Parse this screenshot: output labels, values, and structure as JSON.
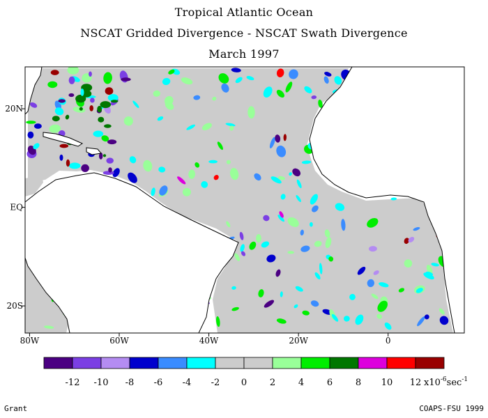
{
  "titles": {
    "line1": "Tropical Atlantic Ocean",
    "line2": "NSCAT Gridded Divergence - NSCAT Swath Divergence",
    "line3": "March 1997"
  },
  "axes": {
    "lon_labels": [
      "80W",
      "60W",
      "40W",
      "20W",
      "0"
    ],
    "lon_values": [
      -80,
      -60,
      -40,
      -20,
      0
    ],
    "lat_labels": [
      "20N",
      "EQ",
      "20S"
    ],
    "lat_values": [
      20,
      0,
      -20
    ]
  },
  "colorbar": {
    "colors": [
      "#4b0082",
      "#7b3fe4",
      "#b48cf2",
      "#0000cd",
      "#3a8cff",
      "#00ffff",
      "#cccccc",
      "#cccccc",
      "#99ff99",
      "#00ee00",
      "#007700",
      "#dd00dd",
      "#ff0000",
      "#990000"
    ],
    "tick_labels": [
      "-12",
      "-10",
      "-8",
      "-6",
      "-4",
      "-2",
      "0",
      "2",
      "4",
      "6",
      "8",
      "10",
      "12"
    ],
    "unit_prefix": "x10",
    "unit_exponent": "-6",
    "unit_suffix": "sec",
    "unit_suffix_exponent": "-1"
  },
  "footer": {
    "left": "Grant",
    "right": "COAPS-FSU 1999"
  },
  "colors": {
    "land": "#ffffff",
    "ocean_neutral": "#cccccc",
    "coast": "#000000"
  }
}
